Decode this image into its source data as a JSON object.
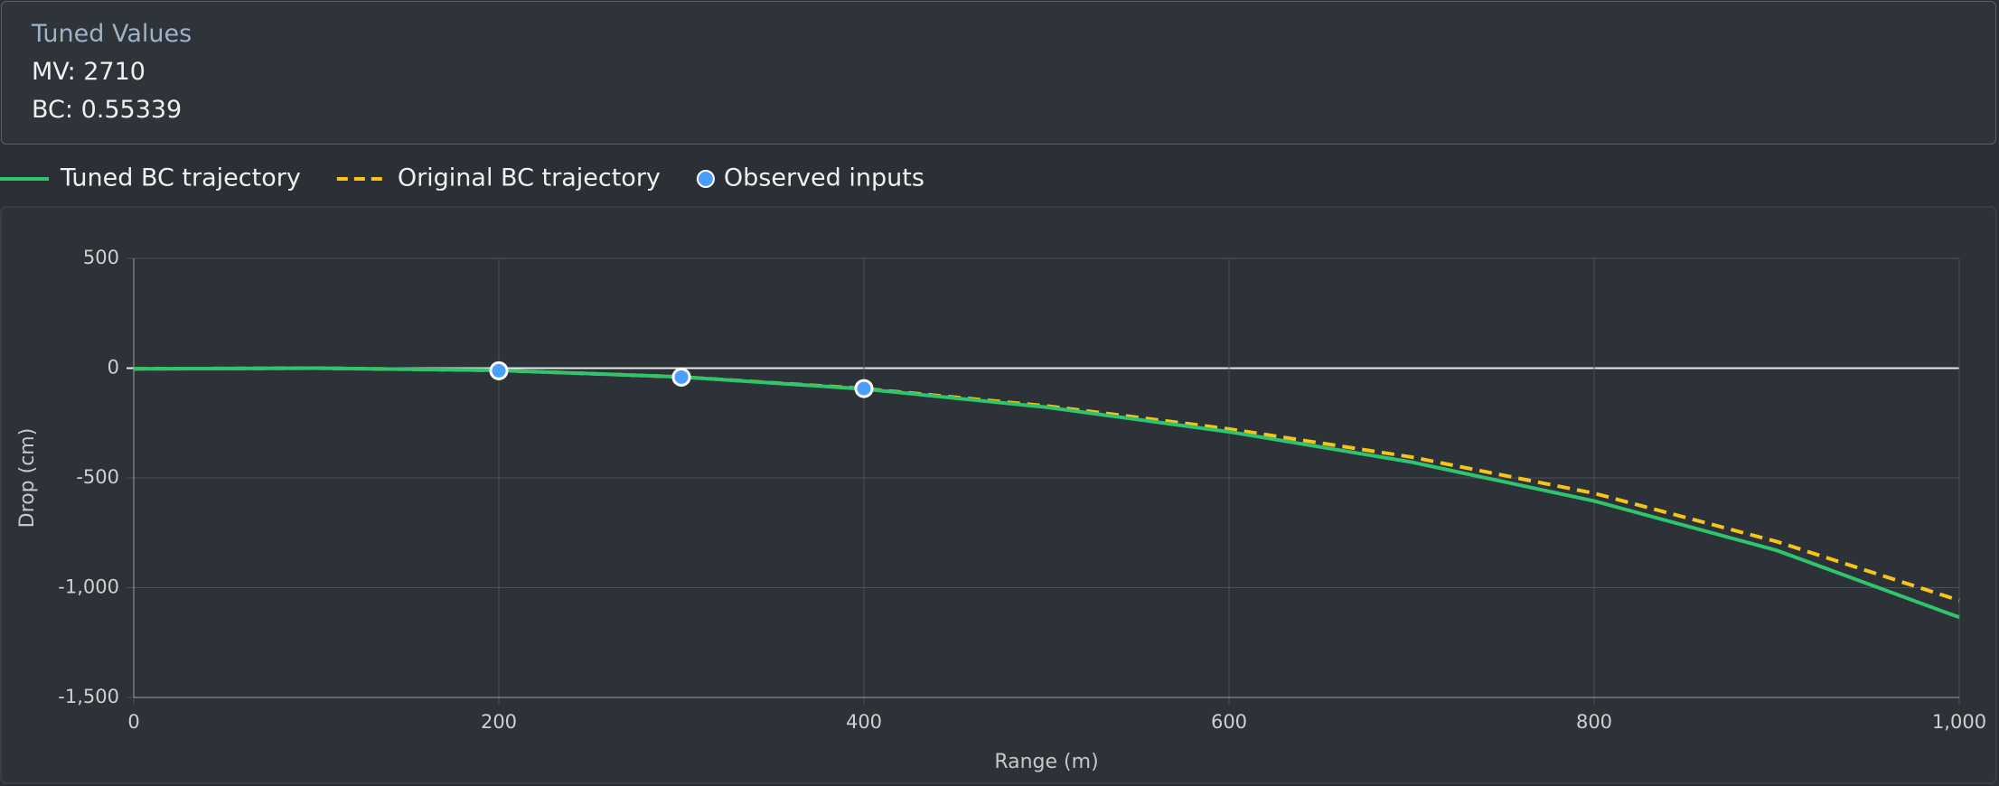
{
  "panel": {
    "title": "Tuned Values",
    "lines": [
      "MV: 2710",
      "BC: 0.55339"
    ]
  },
  "chart_data": {
    "type": "line",
    "x_label": "Range (m)",
    "y_label": "Drop (cm)",
    "xlim": [
      0,
      1000
    ],
    "ylim": [
      -1500,
      500
    ],
    "xticks": [
      0,
      200,
      400,
      600,
      800,
      {
        "value": 1000,
        "label": "1,000"
      }
    ],
    "yticks": [
      500,
      0,
      -500,
      {
        "value": -1000,
        "label": "-1,000"
      },
      {
        "value": -1500,
        "label": "-1,500"
      }
    ],
    "grid": true,
    "series": [
      {
        "name": "Tuned BC trajectory",
        "type": "line",
        "color": "#2fc46e",
        "dash": false,
        "x": [
          0,
          100,
          200,
          300,
          400,
          500,
          600,
          700,
          800,
          900,
          1000
        ],
        "values": [
          -3,
          0,
          -10,
          -40,
          -95,
          -178,
          -290,
          -428,
          -605,
          -830,
          -1135
        ]
      },
      {
        "name": "Original BC trajectory",
        "type": "line",
        "color": "#f5c518",
        "dash": true,
        "x": [
          0,
          100,
          200,
          300,
          400,
          500,
          600,
          700,
          800,
          900,
          1000
        ],
        "values": [
          -3,
          0,
          -10,
          -40,
          -93,
          -172,
          -277,
          -405,
          -570,
          -790,
          -1058
        ]
      },
      {
        "name": "Observed inputs",
        "type": "scatter",
        "color": "#4a9eff",
        "x": [
          200,
          300,
          400
        ],
        "values": [
          -12,
          -41,
          -93
        ]
      }
    ]
  }
}
